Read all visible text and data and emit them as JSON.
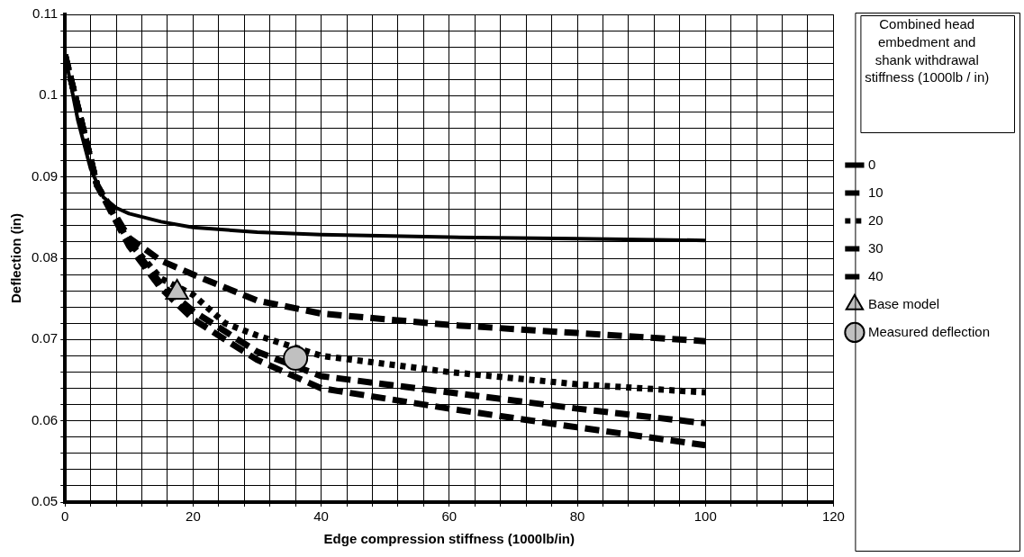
{
  "chart_data": {
    "type": "line",
    "xlabel": "Edge compression stiffness (1000lb/in)",
    "ylabel": "Deflection (in)",
    "legend_title": "Combined head embedment and shank withdrawal stiffness (1000lb / in)",
    "legend": "right",
    "grid": true,
    "marker": "none",
    "xlim": [
      0,
      120
    ],
    "ylim": [
      0.05,
      0.11
    ],
    "xticks": [
      0,
      {
        "value": 4,
        "label": null
      },
      {
        "value": 8,
        "label": null
      },
      {
        "value": 12,
        "label": null
      },
      {
        "value": 16,
        "label": null
      },
      20,
      {
        "value": 24,
        "label": null
      },
      {
        "value": 28,
        "label": null
      },
      {
        "value": 32,
        "label": null
      },
      {
        "value": 36,
        "label": null
      },
      40,
      {
        "value": 44,
        "label": null
      },
      {
        "value": 48,
        "label": null
      },
      {
        "value": 52,
        "label": null
      },
      {
        "value": 56,
        "label": null
      },
      60,
      {
        "value": 64,
        "label": null
      },
      {
        "value": 68,
        "label": null
      },
      {
        "value": 72,
        "label": null
      },
      {
        "value": 76,
        "label": null
      },
      80,
      {
        "value": 84,
        "label": null
      },
      {
        "value": 88,
        "label": null
      },
      {
        "value": 92,
        "label": null
      },
      {
        "value": 96,
        "label": null
      },
      100,
      {
        "value": 104,
        "label": null
      },
      {
        "value": 108,
        "label": null
      },
      {
        "value": 112,
        "label": null
      },
      {
        "value": 116,
        "label": null
      },
      120
    ],
    "yticks": [
      0.05,
      {
        "value": 0.052,
        "label": null
      },
      {
        "value": 0.054,
        "label": null
      },
      {
        "value": 0.056,
        "label": null
      },
      {
        "value": 0.058,
        "label": null
      },
      0.06,
      {
        "value": 0.062,
        "label": null
      },
      {
        "value": 0.064,
        "label": null
      },
      {
        "value": 0.066,
        "label": null
      },
      {
        "value": 0.068,
        "label": null
      },
      0.07,
      {
        "value": 0.072,
        "label": null
      },
      {
        "value": 0.074,
        "label": null
      },
      {
        "value": 0.076,
        "label": null
      },
      {
        "value": 0.078,
        "label": null
      },
      0.08,
      {
        "value": 0.082,
        "label": null
      },
      {
        "value": 0.084,
        "label": null
      },
      {
        "value": 0.086,
        "label": null
      },
      {
        "value": 0.088,
        "label": null
      },
      0.09,
      {
        "value": 0.092,
        "label": null
      },
      {
        "value": 0.094,
        "label": null
      },
      {
        "value": 0.096,
        "label": null
      },
      {
        "value": 0.098,
        "label": null
      },
      0.1,
      {
        "value": 0.102,
        "label": null
      },
      {
        "value": 0.104,
        "label": null
      },
      {
        "value": 0.106,
        "label": null
      },
      {
        "value": 0.108,
        "label": null
      },
      0.11
    ],
    "series": [
      {
        "name": "0",
        "color": "#000000",
        "line_style": "solid",
        "x": [
          0,
          2,
          4,
          6,
          8,
          10,
          15,
          20,
          30,
          40,
          60,
          80,
          100
        ],
        "values": [
          0.105,
          0.097,
          0.091,
          0.0875,
          0.0862,
          0.0855,
          0.0845,
          0.0838,
          0.0832,
          0.0829,
          0.0826,
          0.0824,
          0.0822
        ]
      },
      {
        "name": "10",
        "color": "#000000",
        "line_style": "dashed",
        "x": [
          0,
          5,
          10,
          15,
          20,
          30,
          40,
          60,
          80,
          100
        ],
        "values": [
          0.105,
          0.089,
          0.0825,
          0.0797,
          0.078,
          0.0748,
          0.0732,
          0.0718,
          0.0708,
          0.0698
        ]
      },
      {
        "name": "20",
        "color": "#000000",
        "line_style": "dotted",
        "x": [
          0,
          5,
          10,
          15,
          20,
          25,
          30,
          40,
          60,
          80,
          100
        ],
        "values": [
          0.105,
          0.089,
          0.082,
          0.0775,
          0.0755,
          0.072,
          0.0705,
          0.068,
          0.066,
          0.0645,
          0.0635
        ]
      },
      {
        "name": "30",
        "color": "#000000",
        "line_style": "dashed",
        "x": [
          0,
          5,
          10,
          15,
          20,
          30,
          40,
          60,
          80,
          100
        ],
        "values": [
          0.105,
          0.089,
          0.082,
          0.0768,
          0.0735,
          0.0685,
          0.0655,
          0.0635,
          0.0615,
          0.0597
        ]
      },
      {
        "name": "40",
        "color": "#000000",
        "line_style": "dashed",
        "x": [
          0,
          5,
          10,
          15,
          20,
          30,
          40,
          60,
          80,
          100
        ],
        "values": [
          0.105,
          0.089,
          0.0815,
          0.0763,
          0.0725,
          0.0675,
          0.064,
          0.0615,
          0.0592,
          0.057
        ]
      },
      {
        "name": "Base model",
        "type": "scatter",
        "marker": "triangle",
        "color": "#c0c0c0",
        "x": [
          17.5
        ],
        "values": [
          0.0758
        ]
      },
      {
        "name": "Measured deflection",
        "type": "scatter",
        "marker": "circle",
        "color": "#c0c0c0",
        "x": [
          36
        ],
        "values": [
          0.0677
        ]
      }
    ]
  }
}
